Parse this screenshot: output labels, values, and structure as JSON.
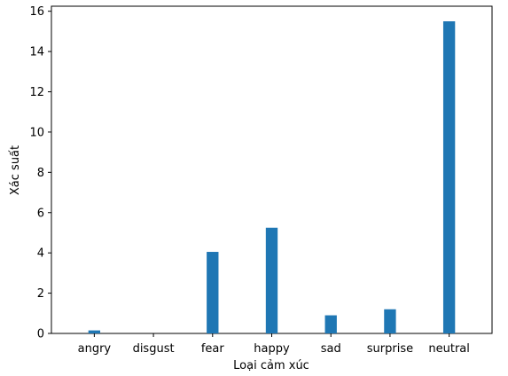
{
  "chart_data": {
    "type": "bar",
    "title": "",
    "xlabel": "Loại cảm xúc",
    "ylabel": "Xác suất",
    "categories": [
      "angry",
      "disgust",
      "fear",
      "happy",
      "sad",
      "surprise",
      "neutral"
    ],
    "values": [
      0.15,
      0.0,
      4.05,
      5.25,
      0.9,
      1.2,
      15.5
    ],
    "ylim": [
      0,
      16.25
    ],
    "yticks": [
      0,
      2,
      4,
      6,
      8,
      10,
      12,
      14,
      16
    ],
    "grid": false,
    "legend": "none",
    "bar_color": "#1f77b4"
  }
}
